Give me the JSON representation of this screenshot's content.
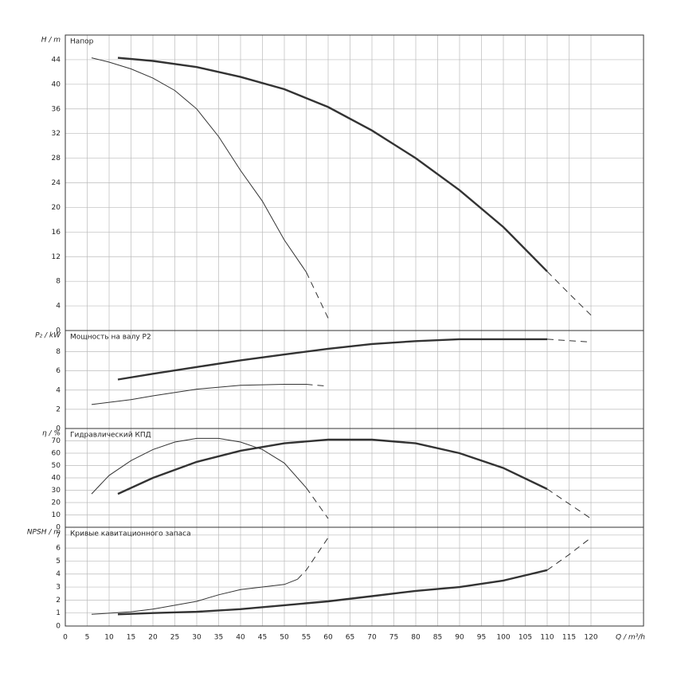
{
  "chart_data": [
    {
      "type": "line",
      "title": "Напор",
      "y_label": "H / m",
      "xlim": [
        0,
        132
      ],
      "ylim": [
        0,
        48
      ],
      "yticks": [
        0,
        4,
        8,
        12,
        16,
        20,
        24,
        28,
        32,
        36,
        40,
        44
      ],
      "grid": true,
      "series": [
        {
          "color": "#333333",
          "line_width": 2.4,
          "dashed": false,
          "x": [
            12,
            20,
            30,
            40,
            50,
            60,
            70,
            80,
            90,
            100,
            110
          ],
          "values": [
            44.3,
            43.8,
            42.8,
            41.2,
            39.2,
            36.3,
            32.5,
            28,
            22.8,
            16.8,
            9.6
          ]
        },
        {
          "color": "#333333",
          "line_width": 1,
          "dashed": true,
          "x": [
            110,
            115,
            120
          ],
          "values": [
            9.6,
            6,
            2.5
          ]
        },
        {
          "color": "#333333",
          "line_width": 1,
          "dashed": false,
          "x": [
            6,
            10,
            15,
            20,
            25,
            30,
            35,
            40,
            45,
            50,
            55
          ],
          "values": [
            44.3,
            43.6,
            42.5,
            41,
            39,
            36,
            31.5,
            26,
            21,
            14.7,
            9.5
          ]
        },
        {
          "color": "#333333",
          "line_width": 1,
          "dashed": true,
          "x": [
            55,
            60
          ],
          "values": [
            9.5,
            2
          ]
        }
      ]
    },
    {
      "type": "line",
      "title": "Мощность на валу P2",
      "y_label": "P₂ / kW",
      "xlim": [
        0,
        132
      ],
      "ylim": [
        0,
        10.2
      ],
      "yticks": [
        0,
        2,
        4,
        6,
        8
      ],
      "grid": true,
      "series": [
        {
          "color": "#333333",
          "line_width": 2.4,
          "dashed": false,
          "x": [
            12,
            20,
            30,
            40,
            50,
            60,
            70,
            80,
            90,
            100,
            110
          ],
          "values": [
            5.1,
            5.7,
            6.4,
            7.1,
            7.7,
            8.3,
            8.8,
            9.1,
            9.3,
            9.3,
            9.3
          ]
        },
        {
          "color": "#333333",
          "line_width": 1,
          "dashed": true,
          "x": [
            110,
            120
          ],
          "values": [
            9.3,
            9
          ]
        },
        {
          "color": "#333333",
          "line_width": 1,
          "dashed": false,
          "x": [
            6,
            15,
            20,
            30,
            40,
            50,
            55
          ],
          "values": [
            2.5,
            3,
            3.4,
            4.1,
            4.5,
            4.6,
            4.6
          ]
        },
        {
          "color": "#333333",
          "line_width": 1,
          "dashed": true,
          "x": [
            55,
            60
          ],
          "values": [
            4.6,
            4.4
          ]
        }
      ]
    },
    {
      "type": "line",
      "title": "Гидравлический КПД",
      "y_label": "η / %",
      "xlim": [
        0,
        132
      ],
      "ylim": [
        0,
        80
      ],
      "yticks": [
        0,
        10,
        20,
        30,
        40,
        50,
        60,
        70
      ],
      "grid": true,
      "series": [
        {
          "color": "#333333",
          "line_width": 2.4,
          "dashed": false,
          "x": [
            12,
            20,
            30,
            40,
            50,
            60,
            70,
            80,
            90,
            100,
            110
          ],
          "values": [
            27,
            40,
            53,
            62,
            68,
            71,
            71,
            68,
            60,
            48,
            31
          ]
        },
        {
          "color": "#333333",
          "line_width": 1,
          "dashed": true,
          "x": [
            110,
            120
          ],
          "values": [
            31,
            7
          ]
        },
        {
          "color": "#333333",
          "line_width": 1,
          "dashed": false,
          "x": [
            6,
            10,
            15,
            20,
            25,
            30,
            35,
            40,
            45,
            50,
            55
          ],
          "values": [
            27,
            42,
            54,
            63,
            69,
            72,
            72,
            69,
            63,
            52,
            32
          ]
        },
        {
          "color": "#333333",
          "line_width": 1,
          "dashed": true,
          "x": [
            55,
            60
          ],
          "values": [
            32,
            7
          ]
        }
      ]
    },
    {
      "type": "line",
      "title": "Кривые кавитационного запаса",
      "y_label": "NPSH / m",
      "x_label": "Q / m³/h",
      "xlim": [
        0,
        132
      ],
      "ylim": [
        0,
        7.6
      ],
      "yticks": [
        0,
        1,
        2,
        3,
        4,
        5,
        6,
        7
      ],
      "xticks": [
        0,
        5,
        10,
        15,
        20,
        25,
        30,
        35,
        40,
        45,
        50,
        55,
        60,
        65,
        70,
        75,
        80,
        85,
        90,
        95,
        100,
        105,
        110,
        115,
        120
      ],
      "grid": true,
      "series": [
        {
          "color": "#333333",
          "line_width": 2.4,
          "dashed": false,
          "x": [
            12,
            20,
            30,
            40,
            50,
            60,
            70,
            80,
            90,
            100,
            110
          ],
          "values": [
            0.9,
            1,
            1.1,
            1.3,
            1.6,
            1.9,
            2.3,
            2.7,
            3,
            3.5,
            4.3
          ]
        },
        {
          "color": "#333333",
          "line_width": 1,
          "dashed": true,
          "x": [
            110,
            115,
            120
          ],
          "values": [
            4.3,
            5.5,
            6.8
          ]
        },
        {
          "color": "#333333",
          "line_width": 1,
          "dashed": false,
          "x": [
            6,
            15,
            20,
            30,
            35,
            40,
            50,
            53
          ],
          "values": [
            0.9,
            1.1,
            1.3,
            1.9,
            2.4,
            2.8,
            3.2,
            3.6
          ]
        },
        {
          "color": "#333333",
          "line_width": 1,
          "dashed": true,
          "x": [
            53,
            55,
            60
          ],
          "values": [
            3.6,
            4.3,
            6.8
          ]
        }
      ]
    }
  ]
}
